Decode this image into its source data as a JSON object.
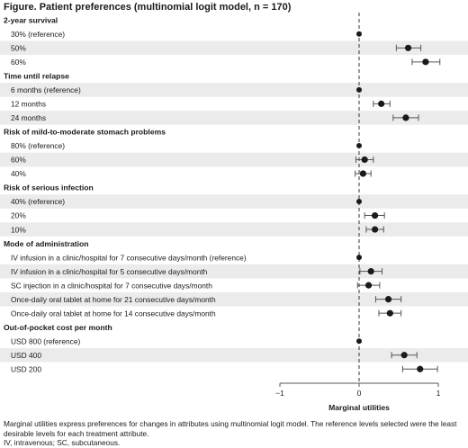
{
  "title": "Figure. Patient preferences (multinomial logit model, n = 170)",
  "footnotes": [
    "Marginal utilities express preferences for changes in attributes using multinomial logit model. The reference levels selected were the least desirable levels for each treatment attribute.",
    "IV, intravenous; SC, subcutaneous."
  ],
  "colors": {
    "shaded_row": "#ebebeb",
    "marker": "#1a1a1a",
    "axis": "#555555",
    "errorbar": "#555555"
  },
  "chart_data": {
    "type": "scatter",
    "subtype": "forest-plot",
    "xlabel": "Marginal utilities",
    "xlim": [
      -1,
      1
    ],
    "xticks": [
      -1,
      0,
      1
    ],
    "xtick_labels": [
      "−1",
      "0",
      "1"
    ],
    "reference_line": 0,
    "groups": [
      {
        "name": "2-year survival",
        "items": [
          {
            "label": "30% (reference)",
            "value": 0,
            "ci": null,
            "shaded": false
          },
          {
            "label": "50%",
            "value": 0.62,
            "ci": [
              0.47,
              0.78
            ],
            "shaded": true
          },
          {
            "label": "60%",
            "value": 0.84,
            "ci": [
              0.67,
              1.02
            ],
            "shaded": false
          }
        ]
      },
      {
        "name": "Time until relapse",
        "items": [
          {
            "label": "6 months (reference)",
            "value": 0,
            "ci": null,
            "shaded": true
          },
          {
            "label": "12 months",
            "value": 0.28,
            "ci": [
              0.18,
              0.39
            ],
            "shaded": false
          },
          {
            "label": "24 months",
            "value": 0.59,
            "ci": [
              0.43,
              0.75
            ],
            "shaded": true
          }
        ]
      },
      {
        "name": "Risk of mild-to-moderate stomach problems",
        "items": [
          {
            "label": "80% (reference)",
            "value": 0,
            "ci": null,
            "shaded": false
          },
          {
            "label": "60%",
            "value": 0.07,
            "ci": [
              -0.04,
              0.18
            ],
            "shaded": true
          },
          {
            "label": "40%",
            "value": 0.05,
            "ci": [
              -0.05,
              0.15
            ],
            "shaded": false
          }
        ]
      },
      {
        "name": "Risk of serious infection",
        "items": [
          {
            "label": "40% (reference)",
            "value": 0,
            "ci": null,
            "shaded": true
          },
          {
            "label": "20%",
            "value": 0.2,
            "ci": [
              0.07,
              0.32
            ],
            "shaded": false
          },
          {
            "label": "10%",
            "value": 0.2,
            "ci": [
              0.09,
              0.31
            ],
            "shaded": true
          }
        ]
      },
      {
        "name": "Mode of administration",
        "items": [
          {
            "label": "IV infusion in a clinic/hospital for 7 consecutive days/month (reference)",
            "value": 0,
            "ci": null,
            "shaded": false
          },
          {
            "label": "IV infusion in a clinic/hospital for 5 consecutive days/month",
            "value": 0.15,
            "ci": [
              0.01,
              0.29
            ],
            "shaded": true
          },
          {
            "label": "SC injection in a clinic/hospital for 7 consecutive days/month",
            "value": 0.12,
            "ci": [
              -0.02,
              0.26
            ],
            "shaded": false
          },
          {
            "label": "Once-daily oral tablet at home for 21 consecutive days/month",
            "value": 0.37,
            "ci": [
              0.21,
              0.53
            ],
            "shaded": true
          },
          {
            "label": "Once-daily oral tablet at home for 14 consecutive days/month",
            "value": 0.39,
            "ci": [
              0.25,
              0.53
            ],
            "shaded": false
          }
        ]
      },
      {
        "name": "Out-of-pocket cost per month",
        "items": [
          {
            "label": "USD 800 (reference)",
            "value": 0,
            "ci": null,
            "shaded": false
          },
          {
            "label": "USD 400",
            "value": 0.57,
            "ci": [
              0.41,
              0.73
            ],
            "shaded": true
          },
          {
            "label": "USD 200",
            "value": 0.77,
            "ci": [
              0.55,
              0.99
            ],
            "shaded": false
          }
        ]
      }
    ]
  }
}
